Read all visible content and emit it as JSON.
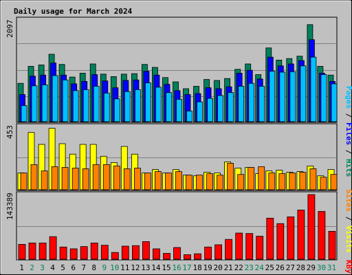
{
  "chart_data": {
    "type": "bar",
    "title": "Daily usage for March 2024",
    "categories": [
      "1",
      "2",
      "3",
      "4",
      "5",
      "6",
      "7",
      "8",
      "9",
      "10",
      "11",
      "12",
      "13",
      "14",
      "15",
      "16",
      "17",
      "18",
      "19",
      "20",
      "21",
      "22",
      "23",
      "24",
      "25",
      "26",
      "27",
      "28",
      "29",
      "30",
      "31"
    ],
    "weekend_days": [
      "2",
      "3",
      "9",
      "10",
      "16",
      "17",
      "23",
      "24",
      "30",
      "31"
    ],
    "panels": [
      {
        "id": "hits-files-pages",
        "max_label": "2097",
        "ymax": 2097,
        "series": [
          {
            "name": "Hits",
            "color": "#00805c",
            "values": [
              790,
              1140,
              1170,
              1390,
              1180,
              920,
              1000,
              1190,
              980,
              930,
              980,
              990,
              1180,
              1120,
              910,
              820,
              680,
              730,
              870,
              850,
              890,
              1080,
              1190,
              970,
              1520,
              1270,
              1300,
              1350,
              2000,
              1140,
              960
            ]
          },
          {
            "name": "Files",
            "color": "#0000ff",
            "values": [
              560,
              940,
              960,
              1210,
              960,
              780,
              830,
              970,
              840,
              700,
              850,
              860,
              1040,
              960,
              770,
              640,
              560,
              580,
              700,
              680,
              720,
              1000,
              1060,
              880,
              1330,
              1150,
              1190,
              1260,
              1690,
              1000,
              830
            ]
          },
          {
            "name": "Pages",
            "color": "#00c0ff",
            "values": [
              330,
              740,
              760,
              950,
              860,
              640,
              660,
              730,
              590,
              470,
              620,
              660,
              800,
              710,
              600,
              460,
              220,
              410,
              480,
              540,
              600,
              730,
              790,
              730,
              1040,
              1020,
              1030,
              1150,
              1330,
              970,
              780
            ]
          }
        ]
      },
      {
        "id": "visits-sites",
        "max_label": "453",
        "ymax": 453,
        "series": [
          {
            "name": "Visits",
            "color": "#ffff00",
            "values": [
              120,
              410,
              325,
              440,
              330,
              255,
              325,
              325,
              240,
              195,
              310,
              255,
              120,
              145,
              120,
              145,
              105,
              100,
              125,
              120,
              200,
              155,
              160,
              115,
              135,
              140,
              125,
              130,
              170,
              100,
              145
            ]
          },
          {
            "name": "Sites",
            "color": "#ff8000",
            "values": [
              120,
              180,
              135,
              165,
              160,
              155,
              150,
              180,
              180,
              170,
              150,
              155,
              120,
              130,
              120,
              130,
              105,
              105,
              115,
              105,
              190,
              110,
              160,
              165,
              120,
              115,
              120,
              125,
              150,
              90,
              110
            ]
          }
        ]
      },
      {
        "id": "kbytes",
        "max_label": "143389",
        "ymax": 143389,
        "series": [
          {
            "name": "KBytes",
            "color": "#ff0000",
            "values": [
              33000,
              36000,
              36000,
              50000,
              27000,
              23000,
              28000,
              36000,
              31000,
              15000,
              29000,
              30000,
              39000,
              23000,
              13000,
              26000,
              10000,
              12000,
              27000,
              32000,
              44000,
              58000,
              57000,
              51000,
              91000,
              79000,
              94000,
              109000,
              143389,
              106000,
              62000
            ]
          }
        ]
      }
    ]
  },
  "colors": {
    "background": "#c0c0c0",
    "plot_background": "#c0c0c0",
    "title": "#0000ff",
    "weekday_label": "#000000",
    "weekend_label": "#00805c",
    "hits": "#00805c",
    "files": "#0000ff",
    "pages": "#00c0ff",
    "visits": "#ffff00",
    "sites": "#ff8000",
    "kbytes": "#ff0000"
  }
}
